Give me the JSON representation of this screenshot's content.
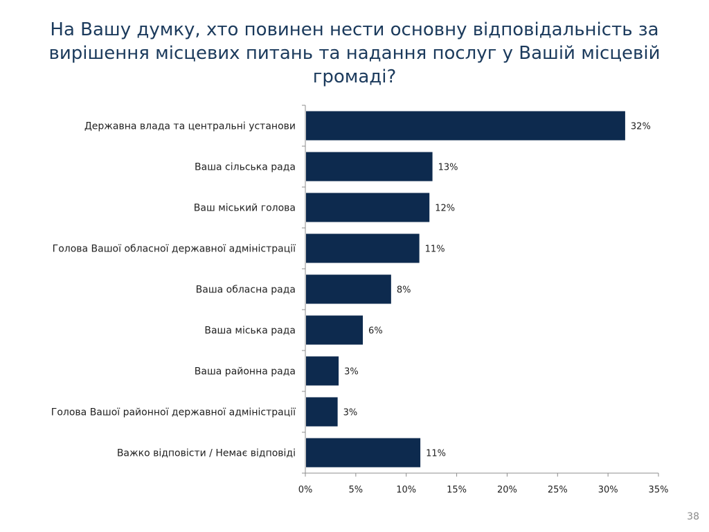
{
  "slide": {
    "title": "На Вашу думку, хто повинен нести основну відповідальність за вирішення місцевих питань та надання послуг у Вашій місцевій громаді?",
    "page_number": "38"
  },
  "colors": {
    "bar": "#0d2a4e",
    "title": "#1b3a5c",
    "axis": "#8c8c8c"
  },
  "chart_data": {
    "type": "bar",
    "orientation": "horizontal",
    "title": "",
    "xlabel": "",
    "ylabel": "",
    "categories": [
      "Державна влада та центральні установи",
      "Ваша сільська рада",
      "Ваш міський голова",
      "Голова Вашої обласної державної адміністрації",
      "Ваша обласна рада",
      "Ваша міська рада",
      "Ваша районна рада",
      "Голова Вашої районної державної адміністрації",
      "Важко відповісти / Немає відповіді"
    ],
    "values": [
      31.7,
      12.6,
      12.3,
      11.3,
      8.5,
      5.7,
      3.3,
      3.2,
      11.4
    ],
    "value_labels": [
      "32%",
      "13%",
      "12%",
      "11%",
      "8%",
      "6%",
      "3%",
      "3%",
      "11%"
    ],
    "xlim": [
      0,
      35
    ],
    "xticks": [
      0,
      5,
      10,
      15,
      20,
      25,
      30,
      35
    ],
    "xtick_labels": [
      "0%",
      "5%",
      "10%",
      "15%",
      "20%",
      "25%",
      "30%",
      "35%"
    ],
    "grid": false,
    "legend": "none"
  }
}
